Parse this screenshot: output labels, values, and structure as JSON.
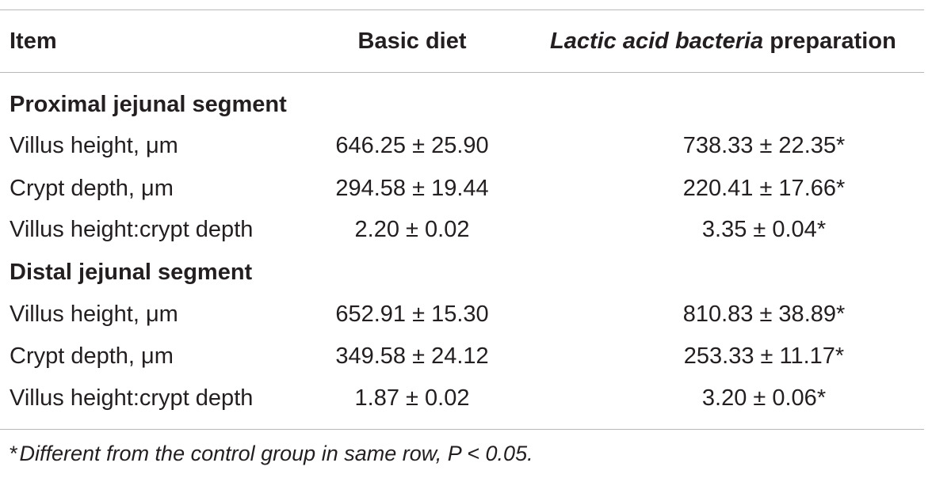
{
  "table": {
    "headers": {
      "item": "Item",
      "basic_diet": "Basic diet",
      "lab_italic": "Lactic acid bacteria",
      "lab_rest": "preparation"
    },
    "sections": [
      {
        "title": "Proximal jejunal segment",
        "rows": [
          {
            "item": "Villus height, μm",
            "basic": "646.25 ± 25.90",
            "lab": "738.33 ± 22.35*"
          },
          {
            "item": "Crypt depth, μm",
            "basic": "294.58 ± 19.44",
            "lab": "220.41 ± 17.66*"
          },
          {
            "item": "Villus height:crypt depth",
            "basic": "2.20 ± 0.02",
            "lab": "3.35 ± 0.04*"
          }
        ]
      },
      {
        "title": "Distal jejunal segment",
        "rows": [
          {
            "item": "Villus height, μm",
            "basic": "652.91 ± 15.30",
            "lab": "810.83 ± 38.89*"
          },
          {
            "item": "Crypt depth, μm",
            "basic": "349.58 ± 24.12",
            "lab": "253.33 ± 11.17*"
          },
          {
            "item": "Villus height:crypt depth",
            "basic": "1.87 ± 0.02",
            "lab": "3.20 ± 0.06*"
          }
        ]
      }
    ],
    "footnote_mark": "*",
    "footnote": "Different from the control group in same row, P < 0.05."
  }
}
